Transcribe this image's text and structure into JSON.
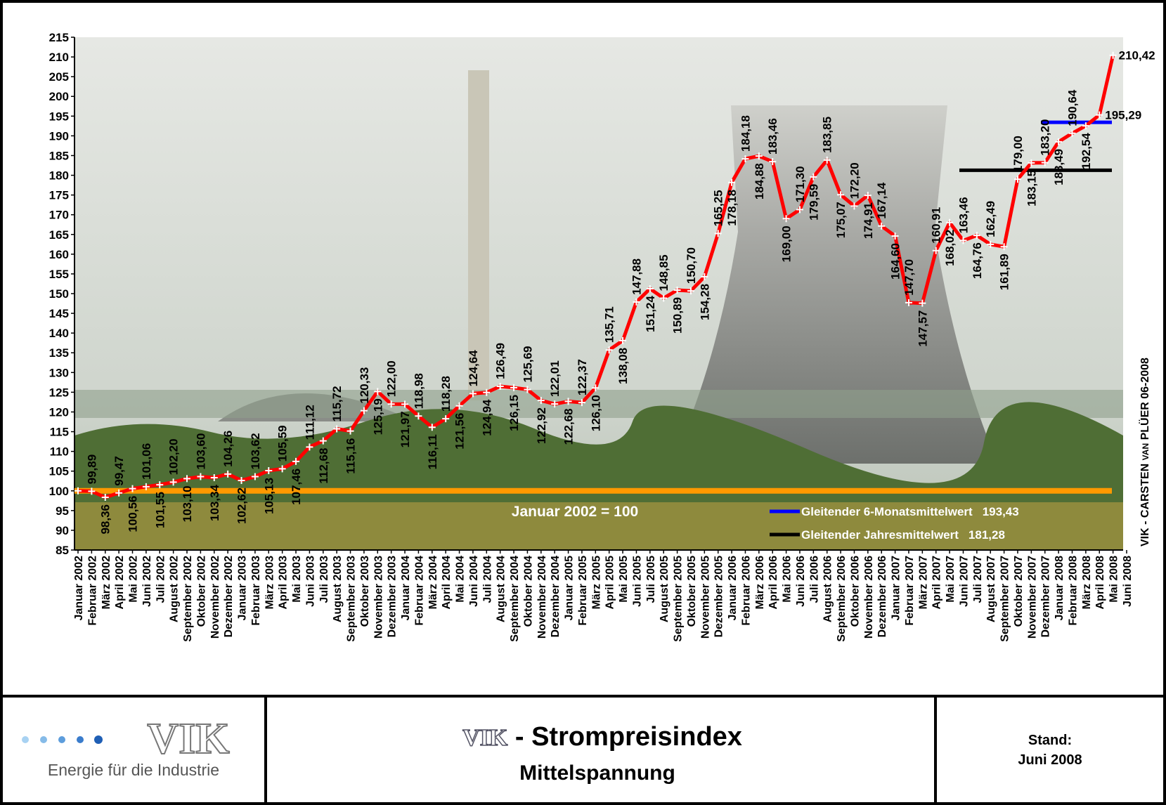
{
  "chart_data": {
    "type": "line",
    "categories": [
      "Januar 2002",
      "Februar 2002",
      "März 2002",
      "April 2002",
      "Mai 2002",
      "Juni 2002",
      "Juli 2002",
      "August 2002",
      "September 2002",
      "Oktober 2002",
      "November 2002",
      "Dezember 2002",
      "Januar 2003",
      "Februar 2003",
      "März 2003",
      "April 2003",
      "Mai 2003",
      "Juni 2003",
      "Juli 2003",
      "August 2003",
      "September 2003",
      "Oktober 2003",
      "November 2003",
      "Dezember 2003",
      "Januar 2004",
      "Februar 2004",
      "März 2004",
      "April 2004",
      "Mai 2004",
      "Juni 2004",
      "Juli 2004",
      "August 2004",
      "September 2004",
      "Oktober 2004",
      "November 2004",
      "Dezember 2004",
      "Januar 2005",
      "Februar 2005",
      "März 2005",
      "April 2005",
      "Mai 2005",
      "Juni 2005",
      "Juli 2005",
      "August 2005",
      "September 2005",
      "Oktober 2005",
      "November 2005",
      "Dezember 2005",
      "Januar 2006",
      "Februar 2006",
      "März 2006",
      "April 2006",
      "Mai 2006",
      "Juni 2006",
      "Juli 2006",
      "August 2006",
      "September 2006",
      "Oktober 2006",
      "November 2006",
      "Dezember 2006",
      "Januar 2007",
      "Februar 2007",
      "März 2007",
      "April 2007",
      "Mai 2007",
      "Juni 2007",
      "Juli 2007",
      "August 2007",
      "September 2007",
      "Oktober 2007",
      "November 2007",
      "Dezember 2007",
      "Januar 2008",
      "Februar 2008",
      "März 2008",
      "April 2008",
      "Mai 2008",
      "Juni 2008"
    ],
    "series": [
      {
        "color": "#ff0000",
        "values": [
          100,
          99.89,
          98.36,
          99.47,
          100.56,
          101.06,
          101.55,
          102.2,
          103.1,
          103.6,
          103.34,
          104.26,
          102.62,
          103.62,
          105.13,
          105.59,
          107.46,
          111.12,
          112.68,
          115.72,
          115.16,
          120.33,
          125.19,
          122.0,
          121.97,
          118.98,
          116.11,
          118.28,
          121.56,
          124.64,
          124.94,
          126.49,
          126.15,
          125.69,
          122.92,
          122.01,
          122.68,
          122.37,
          126.1,
          135.71,
          138.08,
          147.88,
          151.24,
          148.85,
          150.89,
          150.7,
          154.28,
          165.25,
          178.18,
          184.18,
          184.88,
          183.46,
          169.0,
          171.3,
          179.59,
          183.85,
          175.07,
          172.2,
          174.91,
          167.14,
          164.6,
          147.7,
          147.57,
          160.91,
          168.02,
          163.46,
          164.76,
          162.49,
          161.89,
          179.0,
          183.15,
          183.2,
          188.49,
          190.64,
          192.54,
          195.29,
          210.42,
          null
        ],
        "value_labels": [
          null,
          "99,89",
          "98,36",
          "99,47",
          "100,56",
          "101,06",
          "101,55",
          "102,20",
          "103,10",
          "103,60",
          "103,34",
          "104,26",
          "102,62",
          "103,62",
          "105,13",
          "105,59",
          "107,46",
          "111,12",
          "112,68",
          "115,72",
          "115,16",
          "120,33",
          "125,19",
          "122,00",
          "121,97",
          "118,98",
          "116,11",
          "118,28",
          "121,56",
          "124,64",
          "124,94",
          "126,49",
          "126,15",
          "125,69",
          "122,92",
          "122,01",
          "122,68",
          "122,37",
          "126,10",
          "135,71",
          "138,08",
          "147,88",
          "151,24",
          "148,85",
          "150,89",
          "150,70",
          "154,28",
          "165,25",
          "178,18",
          "184,18",
          "184,88",
          "183,46",
          "169,00",
          "171,30",
          "179,59",
          "183,85",
          "175,07",
          "172,20",
          "174,91",
          "167,14",
          "164,60",
          "147,70",
          "147,57",
          "160,91",
          "168,02",
          "163,46",
          "164,76",
          "162,49",
          "161,89",
          "179,00",
          "183,15",
          "183,20",
          "188,49",
          "190,64",
          "192,54",
          "195,29",
          "210,42",
          null
        ]
      }
    ],
    "ylim": [
      85,
      215
    ],
    "yticks": [
      85,
      90,
      95,
      100,
      105,
      110,
      115,
      120,
      125,
      130,
      135,
      140,
      145,
      150,
      155,
      160,
      165,
      170,
      175,
      180,
      185,
      190,
      195,
      200,
      205,
      210,
      215
    ],
    "baseline": {
      "value": 100,
      "label": "Januar 2002 = 100",
      "color": "#ff9900"
    },
    "averages": [
      {
        "name": "Gleitender 6-Monatsmittelwert",
        "value": 193.43,
        "value_label": "193,43",
        "color": "#0000ff"
      },
      {
        "name": "Gleitender Jahresmittelwert",
        "value": 181.28,
        "value_label": "181,28",
        "color": "#000000"
      }
    ],
    "credit": {
      "prefix": "VIK - CARSTEN ",
      "small": "VAN",
      "suffix": " PLÜER 06-2008"
    }
  },
  "footer": {
    "logo": "VIK",
    "tagline": "Energie für die Industrie",
    "title_logo": "VIK",
    "title": " - Strompreisindex",
    "subtitle": "Mittelspannung",
    "stand_label": "Stand:",
    "stand_value": "Juni 2008"
  }
}
